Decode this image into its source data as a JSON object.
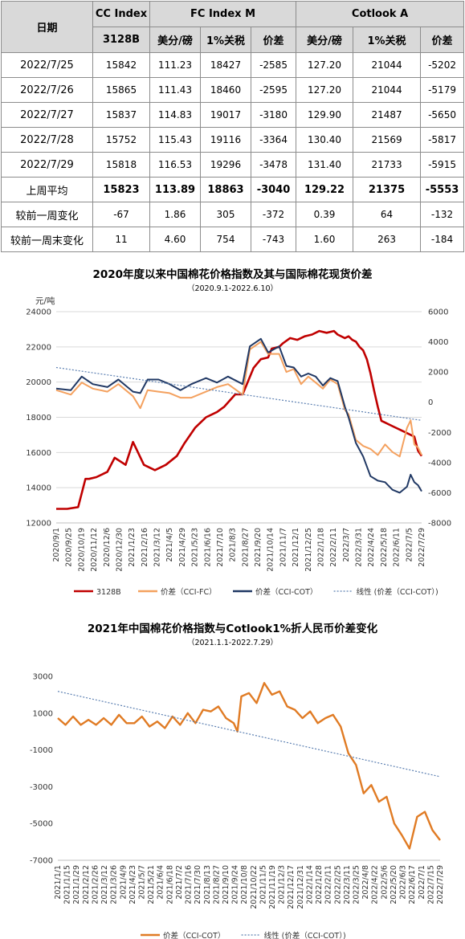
{
  "table": {
    "headers": {
      "date": "日期",
      "cc_index": "CC Index",
      "fc_index_m": "FC Index M",
      "cotlook_a": "Cotlook A",
      "cc_grade": "3128B",
      "fc_usd": "美分/磅",
      "fc_tariff": "1%关税",
      "fc_spread": "价差",
      "ct_usd": "美分/磅",
      "ct_tariff": "1%关税",
      "ct_spread": "价差"
    },
    "rows": [
      [
        "2022/7/25",
        "15842",
        "111.23",
        "18427",
        "-2585",
        "127.20",
        "21044",
        "-5202"
      ],
      [
        "2022/7/26",
        "15865",
        "111.43",
        "18460",
        "-2595",
        "127.20",
        "21044",
        "-5179"
      ],
      [
        "2022/7/27",
        "15837",
        "114.83",
        "19017",
        "-3180",
        "129.90",
        "21487",
        "-5650"
      ],
      [
        "2022/7/28",
        "15752",
        "115.43",
        "19116",
        "-3364",
        "130.40",
        "21569",
        "-5817"
      ],
      [
        "2022/7/29",
        "15818",
        "116.53",
        "19296",
        "-3478",
        "131.40",
        "21733",
        "-5915"
      ],
      [
        "上周平均",
        "15823",
        "113.89",
        "18863",
        "-3040",
        "129.22",
        "21375",
        "-5553"
      ],
      [
        "较前一周变化",
        "-67",
        "1.86",
        "305",
        "-372",
        "0.39",
        "64",
        "-132"
      ],
      [
        "较前一周末变化",
        "11",
        "4.60",
        "754",
        "-743",
        "1.60",
        "263",
        "-184"
      ]
    ]
  },
  "chart_data": [
    {
      "type": "line",
      "title": "2020年度以来中国棉花价格指数及其与国际棉花现货价差",
      "subtitle": "（2020.9.1-2022.6.10）",
      "ylabel": "元/吨",
      "ylim": [
        12000,
        24000
      ],
      "y2lim": [
        -8000,
        6000
      ],
      "yticks": [
        "12000",
        "14000",
        "16000",
        "18000",
        "20000",
        "22000",
        "24000"
      ],
      "y2ticks": [
        "-8000",
        "-6000",
        "-4000",
        "-2000",
        "0",
        "2000",
        "4000",
        "6000"
      ],
      "x_ticks": [
        "2020/9/1",
        "2020/9/25",
        "2020/10/19",
        "2020/11/12",
        "2020/12/6",
        "2020/12/30",
        "2021/1/23",
        "2021/2/16",
        "2021/3/12",
        "2021/4/5",
        "2021/4/29",
        "2021/5/23",
        "2021/6/16",
        "2021/7/10",
        "2021/8/3",
        "2021/8/27",
        "2021/9/20",
        "2021/10/14",
        "2021/11/7",
        "2021/12/1",
        "2021/12/25",
        "2022/1/18",
        "2022/2/11",
        "2022/3/7",
        "2022/3/31",
        "2022/4/24",
        "2022/5/18",
        "2022/6/11",
        "2022/7/5",
        "2022/7/29"
      ],
      "grid": true,
      "legend_position": "bottom",
      "series": [
        {
          "name": "3128B",
          "axis": "left",
          "color": "#c00000",
          "width": 2.6,
          "x": [
            0,
            3,
            6,
            8,
            9,
            11,
            14,
            16,
            19,
            21,
            24,
            27,
            30,
            33,
            35,
            38,
            41,
            44,
            46,
            49,
            51,
            54,
            56,
            58,
            59,
            61,
            62,
            64,
            66,
            68,
            70,
            72,
            74,
            76,
            77,
            79,
            80,
            81,
            82,
            83,
            84,
            85,
            86,
            87,
            88,
            89,
            90,
            92,
            94,
            96,
            98,
            99,
            100
          ],
          "values": [
            12800,
            12800,
            12900,
            14500,
            14500,
            14600,
            14900,
            15700,
            15300,
            16600,
            15300,
            15000,
            15300,
            15800,
            16500,
            17400,
            18000,
            18300,
            18600,
            19300,
            19300,
            20800,
            21300,
            21400,
            21900,
            22000,
            22200,
            22500,
            22400,
            22600,
            22700,
            22900,
            22800,
            22900,
            22700,
            22500,
            22600,
            22400,
            22300,
            22000,
            21800,
            21300,
            20500,
            19500,
            18600,
            17800,
            17700,
            17500,
            17300,
            17100,
            16900,
            16100,
            15800
          ]
        },
        {
          "name": "价差（CCI-FC）",
          "axis": "right",
          "color": "#f4a15f",
          "width": 2,
          "x": [
            0,
            4,
            7,
            10,
            14,
            17,
            21,
            23,
            25,
            28,
            31,
            34,
            37,
            41,
            44,
            47,
            51,
            53,
            56,
            58,
            61,
            63,
            65,
            67,
            69,
            71,
            73,
            75,
            77,
            79,
            80,
            82,
            84,
            86,
            88,
            90,
            92,
            94,
            96,
            97,
            98,
            99,
            100
          ],
          "values": [
            800,
            500,
            1300,
            900,
            700,
            1200,
            400,
            -400,
            800,
            700,
            600,
            300,
            300,
            700,
            1000,
            1200,
            500,
            3500,
            4000,
            3200,
            3200,
            2000,
            2200,
            1200,
            1700,
            1300,
            900,
            1500,
            1200,
            -500,
            -800,
            -2500,
            -2900,
            -3100,
            -3500,
            -2800,
            -3300,
            -3600,
            -1700,
            -1200,
            -2800,
            -3000,
            -3500
          ]
        },
        {
          "name": "价差（CCI-COT）",
          "axis": "right",
          "color": "#203864",
          "width": 2,
          "x": [
            0,
            4,
            7,
            10,
            14,
            17,
            21,
            23,
            25,
            28,
            31,
            34,
            37,
            41,
            44,
            47,
            51,
            53,
            56,
            58,
            61,
            63,
            65,
            67,
            69,
            71,
            73,
            75,
            77,
            79,
            80,
            82,
            84,
            86,
            88,
            90,
            92,
            94,
            96,
            97,
            98,
            99,
            100
          ],
          "values": [
            900,
            800,
            1700,
            1200,
            1000,
            1500,
            700,
            600,
            1500,
            1500,
            1200,
            800,
            1200,
            1600,
            1300,
            1700,
            1200,
            3700,
            4200,
            3300,
            3700,
            2400,
            2300,
            1700,
            1900,
            1700,
            1100,
            1600,
            1400,
            -300,
            -1000,
            -2700,
            -3600,
            -4900,
            -5200,
            -5300,
            -5800,
            -6000,
            -5600,
            -4800,
            -5300,
            -5500,
            -5900
          ]
        },
        {
          "name": "线性 (价差（CCI-COT）)",
          "axis": "right",
          "color": "#5b7fb1",
          "dashed": true,
          "width": 1.2,
          "x": [
            0,
            100
          ],
          "values": [
            2300,
            -1200
          ]
        }
      ]
    },
    {
      "type": "line",
      "title": "2021年中国棉花价格指数与Cotlook1%折人民币价差变化",
      "subtitle": "（2021.1.1-2022.7.29）",
      "ylim": [
        -7000,
        4000
      ],
      "yticks": [
        "-7000",
        "-5000",
        "-3000",
        "-1000",
        "1000",
        "3000"
      ],
      "x_ticks": [
        "2021/1/1",
        "2021/1/15",
        "2021/1/29",
        "2021/2/12",
        "2021/2/26",
        "2021/3/12",
        "2021/3/26",
        "2021/4/9",
        "2021/4/23",
        "2021/5/7",
        "2021/5/21",
        "2021/6/4",
        "2021/6/18",
        "2021/7/2",
        "2021/7/16",
        "2021/7/30",
        "2021/8/13",
        "2021/8/27",
        "2021/9/10",
        "2021/9/24",
        "2021/10/8",
        "2021/10/22",
        "2021/11/5",
        "2021/11/19",
        "2021/12/3",
        "2021/12/17",
        "2021/12/31",
        "2022/1/14",
        "2022/1/28",
        "2022/2/11",
        "2022/2/25",
        "2022/3/11",
        "2022/3/25",
        "2022/4/8",
        "2022/4/22",
        "2022/5/6",
        "2022/5/20",
        "2022/6/3",
        "2022/6/17",
        "2022/7/1",
        "2022/7/15",
        "2022/7/29"
      ],
      "grid": false,
      "legend_position": "bottom",
      "series": [
        {
          "name": "价差（CCI-COT）",
          "color": "#e07b24",
          "width": 2.4,
          "x": [
            0,
            2,
            4,
            6,
            8,
            10,
            12,
            14,
            16,
            18,
            20,
            22,
            24,
            26,
            28,
            30,
            32,
            34,
            36,
            38,
            40,
            42,
            44,
            46,
            47,
            48,
            50,
            52,
            54,
            56,
            58,
            60,
            62,
            64,
            66,
            68,
            70,
            72,
            74,
            76,
            78,
            80,
            82,
            84,
            86,
            88,
            90,
            92,
            94,
            96,
            98,
            100
          ],
          "values": [
            1500,
            1100,
            1600,
            1100,
            1400,
            1100,
            1500,
            1100,
            1700,
            1200,
            1200,
            1600,
            1000,
            1300,
            900,
            1600,
            1100,
            1800,
            1200,
            2000,
            1900,
            2200,
            1500,
            1200,
            700,
            2800,
            3000,
            2400,
            3600,
            2900,
            3100,
            2200,
            2000,
            1500,
            1900,
            1200,
            1500,
            1700,
            1000,
            -600,
            -1300,
            -3000,
            -2500,
            -3500,
            -3200,
            -4800,
            -5500,
            -6300,
            -4400,
            -4100,
            -5200,
            -5800
          ]
        },
        {
          "name": "线性 (价差（CCI-COT）)",
          "color": "#5b7fb1",
          "dashed": true,
          "width": 1.2,
          "x": [
            0,
            100
          ],
          "values": [
            3100,
            -2000
          ]
        }
      ]
    }
  ]
}
